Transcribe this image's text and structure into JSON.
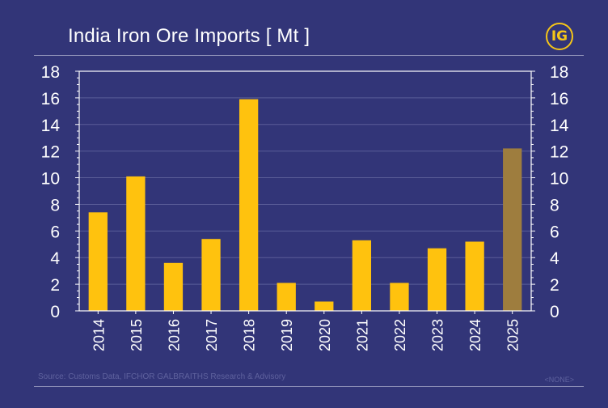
{
  "header": {
    "title": "India Iron Ore Imports [ Mt ]",
    "logo_text": "IG"
  },
  "footer": {
    "source": "Source: Customs Data, IFCHOR GALBRAITHS Research & Advisory",
    "tag": "<NONE>"
  },
  "colors": {
    "background": "#323578",
    "bar": "#FFC20E",
    "bar_highlight": "#9E7D3E",
    "grid": "#5A5D98",
    "axis": "#FFFFFF"
  },
  "chart_data": {
    "type": "bar",
    "title": "India Iron Ore Imports [ Mt ]",
    "categories": [
      "2014",
      "2015",
      "2016",
      "2017",
      "2018",
      "2019",
      "2020",
      "2021",
      "2022",
      "2023",
      "2024",
      "2025"
    ],
    "values": [
      7.4,
      10.1,
      3.6,
      5.4,
      15.9,
      2.1,
      0.7,
      5.3,
      2.1,
      4.7,
      5.2,
      12.2
    ],
    "highlight_category": "2025",
    "ylim": [
      0,
      18
    ],
    "yticks": [
      0,
      2,
      4,
      6,
      8,
      10,
      12,
      14,
      16,
      18
    ],
    "dual_y_axis": true,
    "grid": true,
    "xlabel": "",
    "ylabel": ""
  }
}
